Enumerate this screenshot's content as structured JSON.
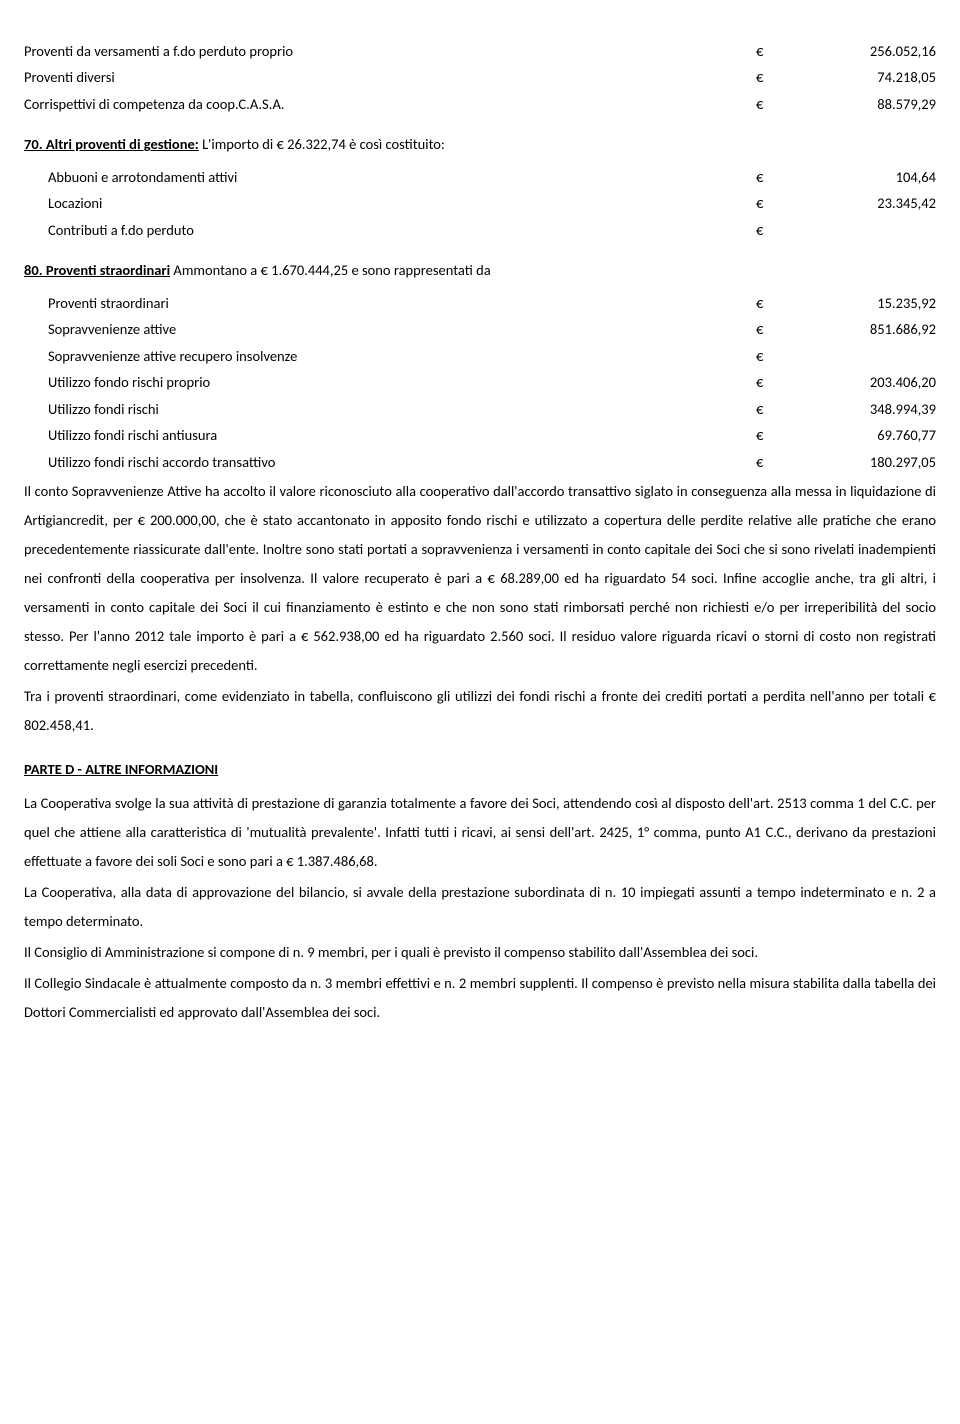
{
  "table1": {
    "rows": [
      {
        "label": "Proventi da versamenti a f.do perduto proprio",
        "eur": "€",
        "val": "256.052,16"
      },
      {
        "label": "Proventi diversi",
        "eur": "€",
        "val": "74.218,05"
      },
      {
        "label": "Corrispettivi di competenza da coop.C.A.S.A.",
        "eur": "€",
        "val": "88.579,29"
      }
    ]
  },
  "heading70": {
    "prefix": "70. Altri proventi di gestione:",
    "rest": " L'importo di € 26.322,74 è così costituito:"
  },
  "table2": {
    "rows": [
      {
        "label": "Abbuoni e arrotondamenti attivi",
        "eur": "€",
        "val": "104,64"
      },
      {
        "label": "Locazioni",
        "eur": "€",
        "val": "23.345,42"
      },
      {
        "label": "Contributi a f.do perduto",
        "eur": "€",
        "val": ""
      }
    ]
  },
  "heading80": {
    "prefix": "80. Proventi straordinari",
    "rest": " Ammontano a € 1.670.444,25 e sono rappresentati da"
  },
  "table3": {
    "rows": [
      {
        "label": "Proventi straordinari",
        "eur": "€",
        "val": "15.235,92"
      },
      {
        "label": "Sopravvenienze attive",
        "eur": "€",
        "val": "851.686,92"
      },
      {
        "label": "Sopravvenienze attive recupero insolvenze",
        "eur": "€",
        "val": ""
      },
      {
        "label": "Utilizzo fondo rischi proprio",
        "eur": "€",
        "val": "203.406,20"
      },
      {
        "label": "Utilizzo fondi rischi",
        "eur": "€",
        "val": "348.994,39"
      },
      {
        "label": "Utilizzo fondi rischi antiusura",
        "eur": "€",
        "val": "69.760,77"
      },
      {
        "label": "Utilizzo fondi rischi accordo transattivo",
        "eur": "€",
        "val": "180.297,05"
      }
    ]
  },
  "para1": "Il conto Sopravvenienze Attive ha accolto il valore riconosciuto alla cooperativo dall'accordo transattivo siglato in conseguenza alla messa in liquidazione di Artigiancredit, per € 200.000,00, che è stato accantonato in apposito fondo rischi e utilizzato a copertura delle perdite relative alle pratiche che erano precedentemente riassicurate dall'ente. Inoltre sono stati portati a sopravvenienza i versamenti in conto capitale dei Soci che si sono rivelati inadempienti nei confronti della cooperativa per insolvenza. Il valore recuperato è pari a € 68.289,00 ed ha riguardato 54 soci. Infine accoglie anche, tra gli altri, i versamenti in conto capitale dei Soci il cui finanziamento è estinto e che non sono stati rimborsati perché non richiesti e/o per irreperibilità del socio stesso. Per l'anno 2012 tale importo è pari a € 562.938,00 ed ha riguardato 2.560 soci. Il residuo valore riguarda ricavi o storni di costo non registrati correttamente negli esercizi precedenti.",
  "para2": "Tra i proventi straordinari, come evidenziato in tabella,  confluiscono gli utilizzi dei fondi rischi a fronte dei crediti portati a perdita nell'anno per totali € 802.458,41.",
  "partD_title": "PARTE D - ALTRE INFORMAZIONI",
  "para3": "La Cooperativa svolge la sua attività di prestazione di garanzia totalmente a favore dei Soci, attendendo così al disposto dell'art. 2513 comma 1 del C.C. per quel che attiene alla caratteristica di 'mutualità prevalente'. Infatti tutti i ricavi, ai sensi dell'art. 2425, 1° comma, punto A1 C.C., derivano da prestazioni effettuate a favore dei soli Soci e sono pari a € 1.387.486,68.",
  "para4": "La Cooperativa, alla data di approvazione del bilancio, si avvale della prestazione subordinata di n. 10 impiegati assunti a tempo indeterminato e n. 2 a tempo determinato.",
  "para5": "Il Consiglio di Amministrazione si compone di n. 9 membri, per i quali è previsto il compenso stabilito dall'Assemblea dei soci.",
  "para6": "Il Collegio Sindacale è attualmente composto da n. 3 membri effettivi e n. 2 membri supplenti. Il compenso è previsto nella misura stabilita dalla tabella dei Dottori Commercialisti ed approvato dall'Assemblea dei soci."
}
